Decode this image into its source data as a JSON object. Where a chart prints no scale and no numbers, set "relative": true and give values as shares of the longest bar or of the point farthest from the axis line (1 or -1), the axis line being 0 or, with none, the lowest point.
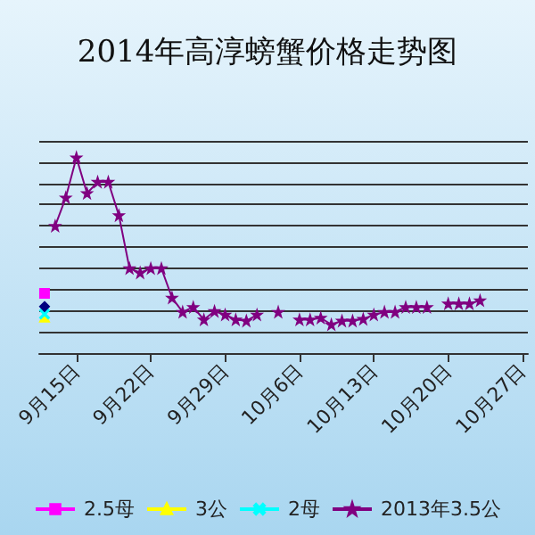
{
  "chart_data": {
    "type": "line",
    "title": "2014年高淳螃蟹价格走势图",
    "relative": true,
    "grid": "y",
    "legend": "bottom",
    "categories": [
      null,
      null,
      null,
      "9月15日",
      null,
      null,
      null,
      null,
      null,
      null,
      "9月22日",
      null,
      null,
      null,
      null,
      null,
      null,
      "9月29日",
      null,
      null,
      null,
      null,
      null,
      null,
      "10月6日",
      null,
      null,
      null,
      null,
      null,
      null,
      "10月13日",
      null,
      null,
      null,
      null,
      null,
      null,
      "10月20日",
      null,
      null,
      null,
      null,
      null,
      null,
      "10月27日"
    ],
    "series": [
      {
        "name": "2.5母",
        "color": "#ff00ff",
        "marker": "square",
        "values": [
          0.305,
          null,
          null,
          null,
          null,
          null,
          null,
          null,
          null,
          null,
          null,
          null,
          null,
          null,
          null,
          null,
          null,
          null,
          null,
          null,
          null,
          null,
          null,
          null,
          null,
          null,
          null,
          null,
          null,
          null,
          null,
          null,
          null,
          null,
          null,
          null,
          null,
          null,
          null,
          null,
          null,
          null,
          null,
          null,
          null,
          null
        ]
      },
      {
        "name": "3公",
        "color": "#ffff00",
        "marker": "triangle",
        "values": [
          0.183,
          null,
          null,
          null,
          null,
          null,
          null,
          null,
          null,
          null,
          null,
          null,
          null,
          null,
          null,
          null,
          null,
          null,
          null,
          null,
          null,
          null,
          null,
          null,
          null,
          null,
          null,
          null,
          null,
          null,
          null,
          null,
          null,
          null,
          null,
          null,
          null,
          null,
          null,
          null,
          null,
          null,
          null,
          null,
          null,
          null
        ]
      },
      {
        "name": "2母",
        "color": "#00ffff",
        "marker": "cross",
        "values": [
          0.2,
          null,
          null,
          null,
          null,
          null,
          null,
          null,
          null,
          null,
          null,
          null,
          null,
          null,
          null,
          null,
          null,
          null,
          null,
          null,
          null,
          null,
          null,
          null,
          null,
          null,
          null,
          null,
          null,
          null,
          null,
          null,
          null,
          null,
          null,
          null,
          null,
          null,
          null,
          null,
          null,
          null,
          null,
          null,
          null,
          null
        ]
      },
      {
        "name": "2013年3.5公",
        "color": "#800080",
        "marker": "star",
        "values": [
          null,
          0.65,
          0.795,
          1,
          0.817,
          0.875,
          0.875,
          0.704,
          0.433,
          0.411,
          0.433,
          0.433,
          0.283,
          0.21,
          0.235,
          0.171,
          0.214,
          0.196,
          0.171,
          0.165,
          0.196,
          null,
          0.21,
          null,
          0.171,
          0.171,
          0.18,
          0.146,
          0.165,
          0.165,
          0.174,
          0.196,
          0.21,
          0.21,
          0.235,
          0.235,
          0.235,
          null,
          0.253,
          0.253,
          0.253,
          0.269,
          null,
          null,
          null,
          null
        ]
      },
      {
        "color": "#000080",
        "marker": "diamond",
        "values": [
          0.238,
          null,
          null,
          null,
          null,
          null,
          null,
          null,
          null,
          null,
          null,
          null,
          null,
          null,
          null,
          null,
          null,
          null,
          null,
          null,
          null,
          null,
          null,
          null,
          null,
          null,
          null,
          null,
          null,
          null,
          null,
          null,
          null,
          null,
          null,
          null,
          null,
          null,
          null,
          null,
          null,
          null,
          null,
          null,
          null,
          null
        ]
      }
    ]
  }
}
